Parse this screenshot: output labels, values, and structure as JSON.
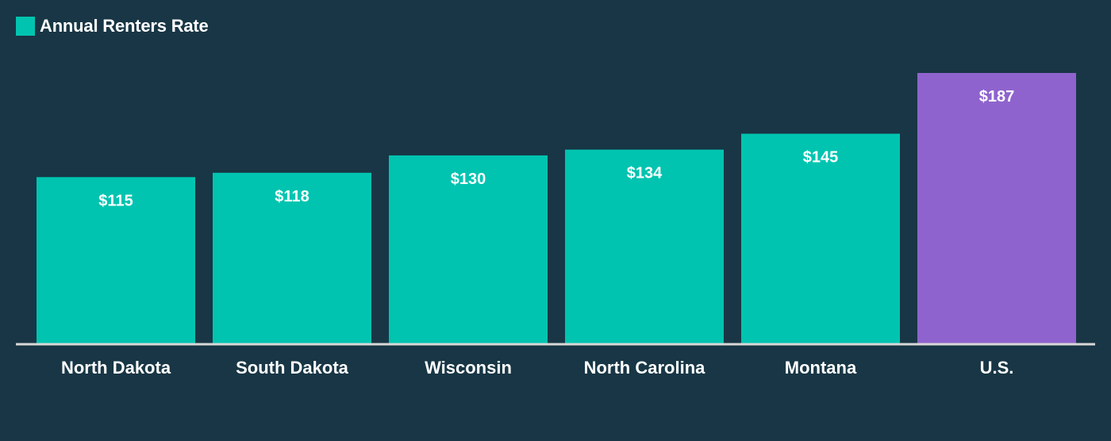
{
  "legend": {
    "label": "Annual Renters Rate",
    "color": "#00c4b0"
  },
  "colors": {
    "background": "#183645",
    "bar": "#00c4b0",
    "highlight_bar": "#8f63cd",
    "axis": "#d8d8d8"
  },
  "chart_data": {
    "type": "bar",
    "categories": [
      "North Dakota",
      "South Dakota",
      "Wisconsin",
      "North Carolina",
      "Montana",
      "U.S."
    ],
    "values": [
      115,
      118,
      130,
      134,
      145,
      187
    ],
    "value_labels": [
      "$115",
      "$118",
      "$130",
      "$134",
      "$145",
      "$187"
    ],
    "highlight_index": 5,
    "series": [
      {
        "name": "Annual Renters Rate",
        "values": [
          115,
          118,
          130,
          134,
          145,
          187
        ]
      }
    ],
    "ylim": [
      0,
      187
    ],
    "grid": false,
    "legend_position": "top-left"
  }
}
